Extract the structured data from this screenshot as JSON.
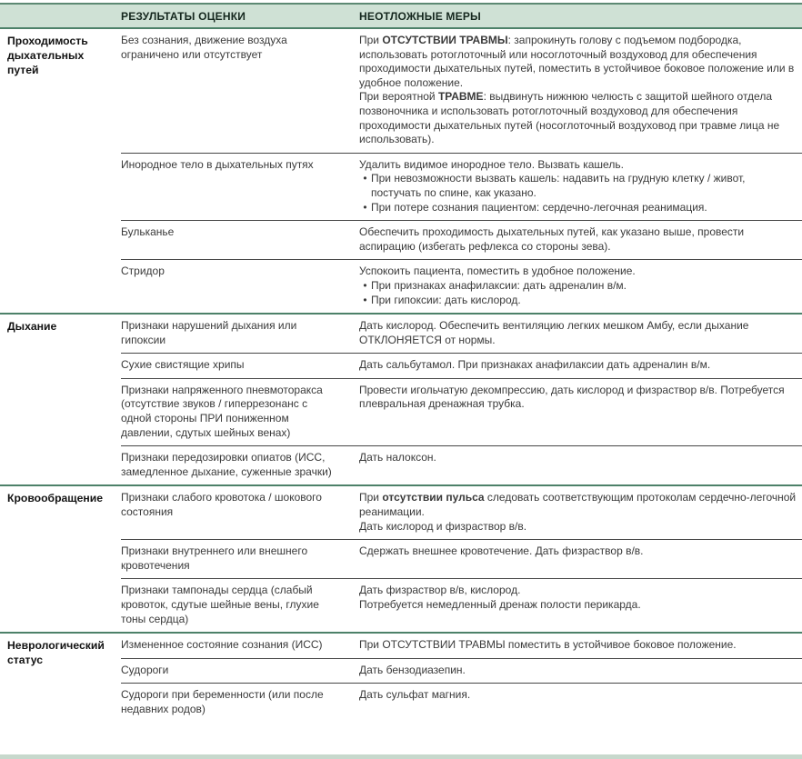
{
  "table": {
    "bullet_char": "•",
    "colors": {
      "header_bg": "#cfe1d5",
      "section_rule": "#4d8169",
      "subrow_rule": "#474747",
      "header_text": "#15271e",
      "body_text": "#3a3a3a"
    },
    "header": {
      "col1": "",
      "col2": "РЕЗУЛЬТАТЫ ОЦЕНКИ",
      "col3": "НЕОТЛОЖНЫЕ МЕРЫ"
    },
    "sections": [
      {
        "label": "Проходимость дыхательных путей",
        "rows": [
          {
            "assessment": "Без сознания, движение воздуха ограничено или отсутствует",
            "measures": [
              {
                "type": "p",
                "segments": [
                  {
                    "t": "При "
                  },
                  {
                    "t": "ОТСУТСТВИИ ТРАВМЫ",
                    "b": true
                  },
                  {
                    "t": ": запрокинуть голову с подъемом подбородка, использовать ротоглоточный или носоглоточный воздуховод для обеспечения проходимости дыхательных путей, поместить в устойчивое боковое положение или в удобное положение."
                  }
                ]
              },
              {
                "type": "p",
                "segments": [
                  {
                    "t": "При вероятной "
                  },
                  {
                    "t": "ТРАВМЕ",
                    "b": true
                  },
                  {
                    "t": ": выдвинуть нижнюю челюсть с защитой шейного отдела позвоночника и использовать ротоглоточный воздуховод для обеспечения проходимости дыхательных путей (носоглоточный воздуховод при травме лица не использовать)."
                  }
                ]
              }
            ]
          },
          {
            "assessment": "Инородное тело в дыхательных путях",
            "measures": [
              {
                "type": "p",
                "segments": [
                  {
                    "t": "Удалить видимое инородное тело. Вызвать кашель."
                  }
                ]
              },
              {
                "type": "bullet",
                "segments": [
                  {
                    "t": "При невозможности вызвать кашель: надавить на грудную клетку / живот, постучать по спине, как указано."
                  }
                ]
              },
              {
                "type": "bullet",
                "segments": [
                  {
                    "t": "При потере сознания пациентом: сердечно-легочная реанимация."
                  }
                ]
              }
            ]
          },
          {
            "assessment": "Бульканье",
            "measures": [
              {
                "type": "p",
                "segments": [
                  {
                    "t": "Обеспечить проходимость дыхательных путей, как указано выше, провести аспирацию (избегать рефлекса со стороны зева)."
                  }
                ]
              }
            ]
          },
          {
            "assessment": "Стридор",
            "measures": [
              {
                "type": "p",
                "segments": [
                  {
                    "t": "Успокоить пациента, поместить в удобное положение."
                  }
                ]
              },
              {
                "type": "bullet",
                "segments": [
                  {
                    "t": "При признаках анафилаксии: дать адреналин в/м."
                  }
                ]
              },
              {
                "type": "bullet",
                "segments": [
                  {
                    "t": "При гипоксии: дать кислород."
                  }
                ]
              }
            ]
          }
        ]
      },
      {
        "label": "Дыхание",
        "rows": [
          {
            "assessment": "Признаки нарушений дыхания или гипоксии",
            "measures": [
              {
                "type": "p",
                "segments": [
                  {
                    "t": "Дать кислород. Обеспечить вентиляцию легких мешком Амбу, если дыхание ОТКЛОНЯЕТСЯ от нормы."
                  }
                ]
              }
            ]
          },
          {
            "assessment": "Сухие свистящие хрипы",
            "measures": [
              {
                "type": "p",
                "segments": [
                  {
                    "t": "Дать сальбутамол. При признаках анафилаксии дать адреналин в/м."
                  }
                ]
              }
            ]
          },
          {
            "assessment": "Признаки напряженного пневмоторакса (отсутствие звуков / гиперрезонанс с одной стороны ПРИ пониженном давлении, сдутых шейных венах)",
            "measures": [
              {
                "type": "p",
                "segments": [
                  {
                    "t": "Провести игольчатую декомпрессию, дать кислород и физраствор в/в. Потребуется плевральная дренажная трубка."
                  }
                ]
              }
            ]
          },
          {
            "assessment": "Признаки передозировки опиатов (ИСС, замедленное дыхание, суженные зрачки)",
            "measures": [
              {
                "type": "p",
                "segments": [
                  {
                    "t": "Дать налоксон."
                  }
                ]
              }
            ]
          }
        ]
      },
      {
        "label": "Кровообращение",
        "rows": [
          {
            "assessment": "Признаки слабого кровотока / шокового состояния",
            "measures": [
              {
                "type": "p",
                "segments": [
                  {
                    "t": "При "
                  },
                  {
                    "t": "отсутствии пульса",
                    "b": true
                  },
                  {
                    "t": " следовать соответствующим протоколам сердечно-легочной реанимации."
                  }
                ]
              },
              {
                "type": "p",
                "segments": [
                  {
                    "t": "Дать кислород и физраствор в/в."
                  }
                ]
              }
            ]
          },
          {
            "assessment": "Признаки внутреннего или внешнего кровотечения",
            "measures": [
              {
                "type": "p",
                "segments": [
                  {
                    "t": "Сдержать внешнее кровотечение. Дать физраствор в/в."
                  }
                ]
              }
            ]
          },
          {
            "assessment": "Признаки тампонады сердца (слабый кровоток, сдутые шейные вены, глухие тоны сердца)",
            "measures": [
              {
                "type": "p",
                "segments": [
                  {
                    "t": "Дать физраствор в/в, кислород."
                  }
                ]
              },
              {
                "type": "p",
                "segments": [
                  {
                    "t": "Потребуется немедленный дренаж полости перикарда."
                  }
                ]
              }
            ]
          }
        ]
      },
      {
        "label": "Неврологический статус",
        "rows": [
          {
            "assessment": "Измененное состояние сознания (ИСС)",
            "measures": [
              {
                "type": "p",
                "segments": [
                  {
                    "t": "При ОТСУТСТВИИ ТРАВМЫ поместить в устойчивое боковое положение."
                  }
                ]
              }
            ]
          },
          {
            "assessment": "Судороги",
            "measures": [
              {
                "type": "p",
                "segments": [
                  {
                    "t": "Дать бензодиазепин."
                  }
                ]
              }
            ]
          },
          {
            "assessment": "Судороги при беременности (или после недавних родов)",
            "measures": [
              {
                "type": "p",
                "segments": [
                  {
                    "t": "Дать сульфат магния."
                  }
                ]
              }
            ]
          }
        ]
      }
    ]
  }
}
